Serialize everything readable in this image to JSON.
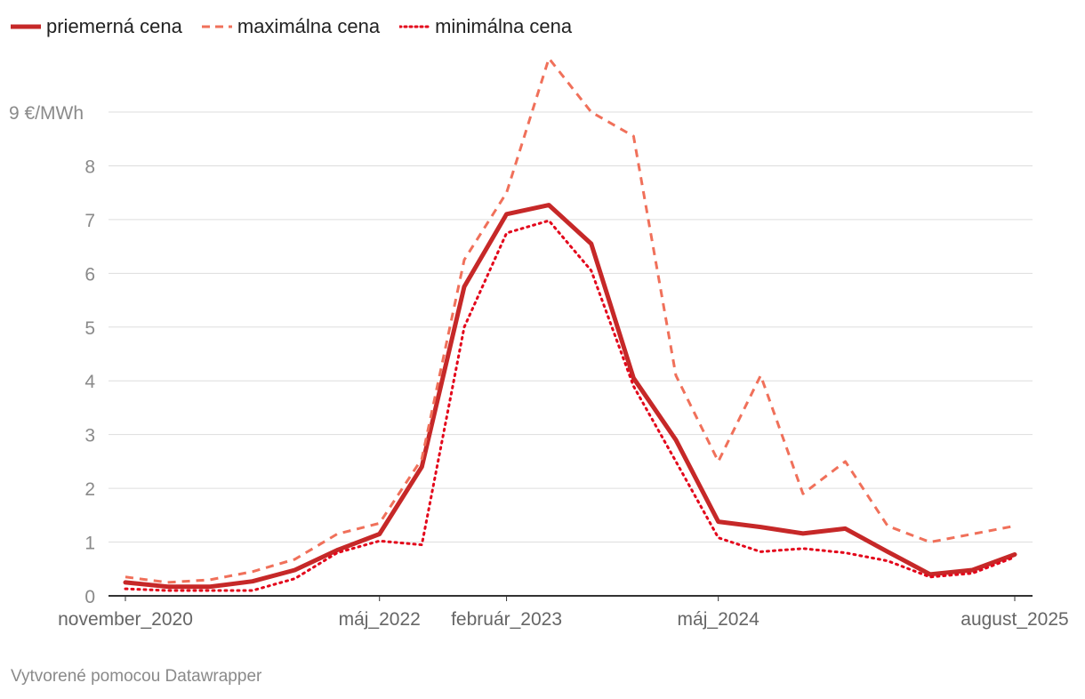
{
  "chart_data": {
    "type": "line",
    "unit_label": "9 €/MWh",
    "ylim": [
      0,
      9
    ],
    "y_ticks": [
      0,
      1,
      2,
      3,
      4,
      5,
      6,
      7,
      8,
      9
    ],
    "x_tick_labels": [
      {
        "index": 0,
        "label": "november_2020"
      },
      {
        "index": 6,
        "label": "máj_2022"
      },
      {
        "index": 9,
        "label": "február_2023"
      },
      {
        "index": 14,
        "label": "máj_2024"
      },
      {
        "index": 21,
        "label": "august_2025"
      }
    ],
    "n_points": 22,
    "series": [
      {
        "name": "priemerná cena",
        "color": "#c62828",
        "style": "solid",
        "values": [
          0.25,
          0.17,
          0.17,
          0.27,
          0.48,
          0.85,
          1.15,
          2.4,
          5.75,
          7.1,
          7.27,
          6.55,
          4.05,
          2.9,
          1.38,
          1.28,
          1.16,
          1.25,
          0.82,
          0.4,
          0.48,
          0.77
        ]
      },
      {
        "name": "maximálna cena",
        "color": "#f0705a",
        "style": "dashed",
        "values": [
          0.35,
          0.25,
          0.3,
          0.45,
          0.68,
          1.15,
          1.35,
          2.55,
          6.25,
          7.5,
          10.0,
          9.0,
          8.55,
          4.1,
          2.5,
          4.1,
          1.9,
          2.5,
          1.3,
          1.0,
          1.15,
          1.3
        ]
      },
      {
        "name": "minimálna cena",
        "color": "#e3061b",
        "style": "dotted",
        "values": [
          0.13,
          0.1,
          0.1,
          0.1,
          0.32,
          0.8,
          1.02,
          0.95,
          5.0,
          6.75,
          6.98,
          6.05,
          3.9,
          2.5,
          1.08,
          0.82,
          0.88,
          0.8,
          0.65,
          0.35,
          0.42,
          0.72
        ]
      }
    ],
    "title": ""
  },
  "footer": {
    "credit": "Vytvorené pomocou Datawrapper"
  }
}
